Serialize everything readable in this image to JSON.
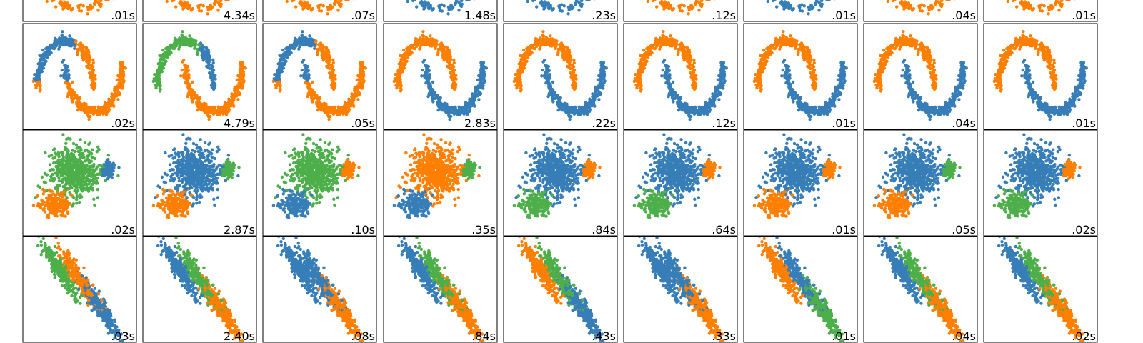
{
  "colors": {
    "blue": "#377eb8",
    "orange": "#ff7f00",
    "green": "#4daf4a",
    "pink": "#f781bf"
  },
  "chart_data": {
    "type": "scatter",
    "grid": false,
    "axes_ticks": false,
    "layout": "grid of small-multiple scatter panels; 4 rows visible (top row clipped), 9 columns",
    "rows": [
      {
        "dataset": "clipped-top-row",
        "times": [
          ".01s",
          "4.34s",
          ".07s",
          "1.48s",
          ".23s",
          ".12s",
          ".01s",
          ".04s",
          ".01s"
        ],
        "panel_colors": [
          [
            "orange",
            "blue"
          ],
          [
            "orange",
            "blue"
          ],
          [
            "orange"
          ],
          [
            "blue"
          ],
          [
            "blue"
          ],
          [
            "orange"
          ],
          [
            "blue"
          ],
          [
            "orange"
          ],
          [
            "orange"
          ]
        ]
      },
      {
        "dataset": "moons",
        "times": [
          ".02s",
          "4.79s",
          ".05s",
          "2.83s",
          ".22s",
          ".12s",
          ".01s",
          ".04s",
          ".01s"
        ],
        "panel_colors": [
          [
            "blue",
            "orange"
          ],
          [
            "green",
            "blue",
            "orange"
          ],
          [
            "blue",
            "orange"
          ],
          [
            "orange",
            "blue"
          ],
          [
            "orange",
            "blue"
          ],
          [
            "orange",
            "blue"
          ],
          [
            "orange",
            "blue"
          ],
          [
            "orange",
            "blue"
          ],
          [
            "orange",
            "blue"
          ]
        ]
      },
      {
        "dataset": "varied-blobs",
        "times": [
          ".02s",
          "2.87s",
          ".10s",
          ".35s",
          ".84s",
          ".64s",
          ".01s",
          ".05s",
          ".02s"
        ],
        "panel_colors": [
          [
            "green",
            "orange",
            "blue"
          ],
          [
            "blue",
            "orange",
            "green"
          ],
          [
            "green",
            "blue",
            "orange"
          ],
          [
            "orange",
            "blue",
            "green"
          ],
          [
            "blue",
            "green",
            "orange"
          ],
          [
            "blue",
            "green",
            "orange"
          ],
          [
            "blue",
            "orange",
            "orange"
          ],
          [
            "blue",
            "orange",
            "green"
          ],
          [
            "blue",
            "green",
            "orange"
          ]
        ]
      },
      {
        "dataset": "anisotropic",
        "times": [
          ".03s",
          "2.40s",
          ".08s",
          ".84s",
          ".43s",
          ".33s",
          ".01s",
          ".04s",
          ".02s"
        ],
        "panel_colors": [
          [
            "green",
            "orange",
            "blue"
          ],
          [
            "blue",
            "green",
            "orange"
          ],
          [
            "blue",
            "blue",
            "orange"
          ],
          [
            "blue",
            "green",
            "orange"
          ],
          [
            "orange",
            "green",
            "blue"
          ],
          [
            "blue",
            "blue",
            "orange"
          ],
          [
            "orange",
            "blue",
            "green",
            "pink"
          ],
          [
            "blue",
            "green",
            "orange"
          ],
          [
            "blue",
            "green",
            "orange"
          ]
        ]
      }
    ]
  }
}
